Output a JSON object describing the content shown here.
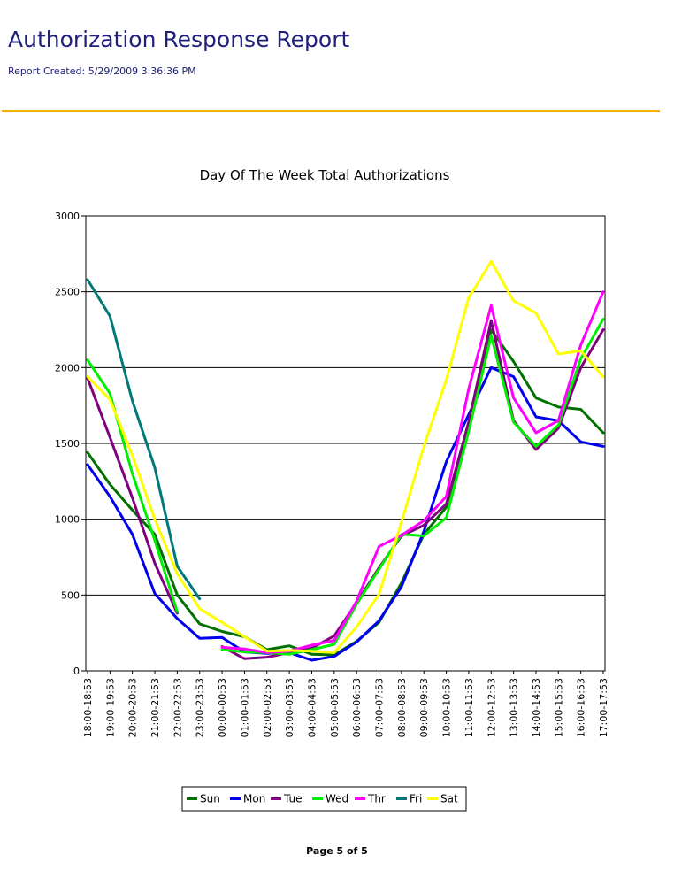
{
  "report": {
    "title": "Authorization Response Report",
    "created": "Report Created: 5/29/2009 3:36:36 PM"
  },
  "footer": {
    "page": "Page 5 of 5"
  },
  "colors": {
    "title": "#1f1f7a",
    "rule": "#f0b400"
  },
  "chart_data": {
    "type": "line",
    "title": "Day Of The Week Total Authorizations",
    "xlabel": "",
    "ylabel": "",
    "ylim": [
      0,
      3000
    ],
    "yticks": [
      "0",
      "500",
      "1000",
      "1500",
      "2000",
      "2500",
      "3000"
    ],
    "grid": true,
    "legend_position": "bottom",
    "categories": [
      "18:00-18:53",
      "19:00-19:53",
      "20:00-20:53",
      "21:00-21:53",
      "22:00-22:53",
      "23:00-23:53",
      "00:00-00:53",
      "01:00-01:53",
      "02:00-02:53",
      "03:00-03:53",
      "04:00-04:53",
      "05:00-05:53",
      "06:00-06:53",
      "07:00-07:53",
      "08:00-08:53",
      "09:00-09:53",
      "10:00-10:53",
      "11:00-11:53",
      "12:00-12:53",
      "13:00-13:53",
      "14:00-14:53",
      "15:00-15:53",
      "16:00-16:53",
      "17:00-17:53"
    ],
    "series": [
      {
        "name": "Sun",
        "color": "#007000",
        "values": [
          1440,
          1230,
          1060,
          900,
          500,
          310,
          260,
          225,
          140,
          165,
          110,
          105,
          195,
          320,
          580,
          900,
          1080,
          1640,
          2250,
          2040,
          1800,
          1740,
          1725,
          1570
        ]
      },
      {
        "name": "Mon",
        "color": "#0000ee",
        "values": [
          1360,
          1150,
          900,
          510,
          345,
          215,
          220,
          125,
          115,
          120,
          70,
          95,
          190,
          330,
          555,
          920,
          1380,
          1690,
          2000,
          1940,
          1675,
          1650,
          1510,
          1480
        ]
      },
      {
        "name": "Tue",
        "color": "#800080",
        "values": [
          1930,
          1540,
          1140,
          710,
          380,
          null,
          160,
          80,
          90,
          120,
          150,
          230,
          450,
          680,
          890,
          960,
          1100,
          1640,
          2310,
          1650,
          1460,
          1600,
          2000,
          2250
        ]
      },
      {
        "name": "Wed",
        "color": "#00ee00",
        "values": [
          2050,
          1830,
          1300,
          860,
          390,
          null,
          140,
          125,
          120,
          110,
          140,
          175,
          440,
          670,
          900,
          890,
          1010,
          1580,
          2210,
          1640,
          1480,
          1620,
          2060,
          2320
        ]
      },
      {
        "name": "Thr",
        "color": "#ff00ff",
        "values": [
          null,
          null,
          null,
          null,
          null,
          null,
          155,
          145,
          120,
          130,
          170,
          200,
          460,
          820,
          895,
          990,
          1150,
          1860,
          2410,
          1800,
          1570,
          1650,
          2150,
          2500
        ]
      },
      {
        "name": "Fri",
        "color": "#007878",
        "values": [
          2580,
          2340,
          1780,
          1340,
          690,
          475,
          null,
          null,
          null,
          null,
          null,
          null,
          null,
          null,
          null,
          null,
          null,
          null,
          null,
          null,
          null,
          null,
          null,
          null
        ]
      },
      {
        "name": "Sat",
        "color": "#ffff00",
        "values": [
          1940,
          1790,
          1420,
          1000,
          640,
          410,
          320,
          225,
          130,
          135,
          130,
          120,
          290,
          505,
          980,
          1480,
          1920,
          2460,
          2700,
          2440,
          2360,
          2090,
          2110,
          1940
        ]
      }
    ]
  }
}
